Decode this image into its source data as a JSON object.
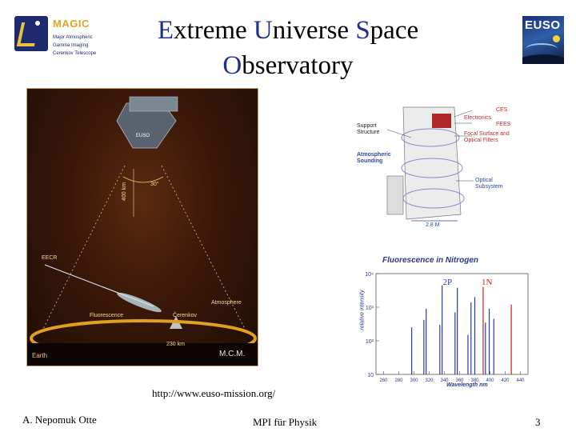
{
  "header": {
    "title_line1": [
      {
        "cap": "E",
        "rest": "xtreme "
      },
      {
        "cap": "U",
        "rest": "niverse "
      },
      {
        "cap": "S",
        "rest": "pace"
      }
    ],
    "title_line2": [
      {
        "cap": "O",
        "rest": "bservatory"
      }
    ]
  },
  "logo_magic": {
    "word": "MAGIC",
    "lines": [
      "Major Atmospheric",
      "Gamma Imaging",
      "Cerenkov Telescope"
    ]
  },
  "logo_euso": {
    "text": "EUSO"
  },
  "diagram_sky": {
    "satellite_label": "EUSO",
    "fov_angle": "30°",
    "altitude": "400 km",
    "footprint": "230 km",
    "eecr_label": "EECR",
    "atmosphere_label": "Atmosphere",
    "fluorescence_label": "Fluorescence",
    "cerenkov_label": "Čerenkov",
    "earth_label": "Earth",
    "credit": "M.C.M."
  },
  "diagram_instrument": {
    "labels": {
      "ces": "CES",
      "electronics": "Electronics",
      "fees": "FEES",
      "support_structure": "Support Structure",
      "focal_surface": "Focal Surface and Optical Filters",
      "atmospheric_sounding": "Atmospheric Sounding",
      "optical_subsystem": "Optical Subsystem",
      "size": "2.8 M"
    }
  },
  "chart_data": {
    "type": "bar",
    "title": "Fluorescence in Nitrogen",
    "xlabel": "Wavelength nm",
    "ylabel": "relative intensity",
    "y_scale": "log",
    "ylim": [
      10,
      10000
    ],
    "xlim": [
      250,
      450
    ],
    "y_ticks": [
      "10⁴",
      "10³",
      "10²",
      "10"
    ],
    "x_ticks": [
      "260",
      "280",
      "300",
      "320",
      "340",
      "360",
      "380",
      "400",
      "420",
      "440"
    ],
    "bands": [
      {
        "name": "2P",
        "color": "#2a3aa8"
      },
      {
        "name": "1N",
        "color": "#d02020"
      }
    ],
    "series": [
      {
        "name": "2P",
        "color": "#2a3aa8",
        "points": [
          {
            "x": 297,
            "y": 250
          },
          {
            "x": 313,
            "y": 420
          },
          {
            "x": 316,
            "y": 900
          },
          {
            "x": 334,
            "y": 300
          },
          {
            "x": 337,
            "y": 4500
          },
          {
            "x": 354,
            "y": 700
          },
          {
            "x": 357,
            "y": 3800
          },
          {
            "x": 371,
            "y": 150
          },
          {
            "x": 375,
            "y": 1400
          },
          {
            "x": 380,
            "y": 2000
          },
          {
            "x": 394,
            "y": 350
          },
          {
            "x": 399,
            "y": 900
          },
          {
            "x": 405,
            "y": 450
          }
        ]
      },
      {
        "name": "1N",
        "color": "#d02020",
        "points": [
          {
            "x": 391,
            "y": 4000
          },
          {
            "x": 428,
            "y": 1200
          }
        ]
      }
    ]
  },
  "url": "http://www.euso-mission.org/",
  "footer": {
    "author": "A. Nepomuk Otte",
    "institute": "MPI für Physik",
    "page": "3"
  }
}
